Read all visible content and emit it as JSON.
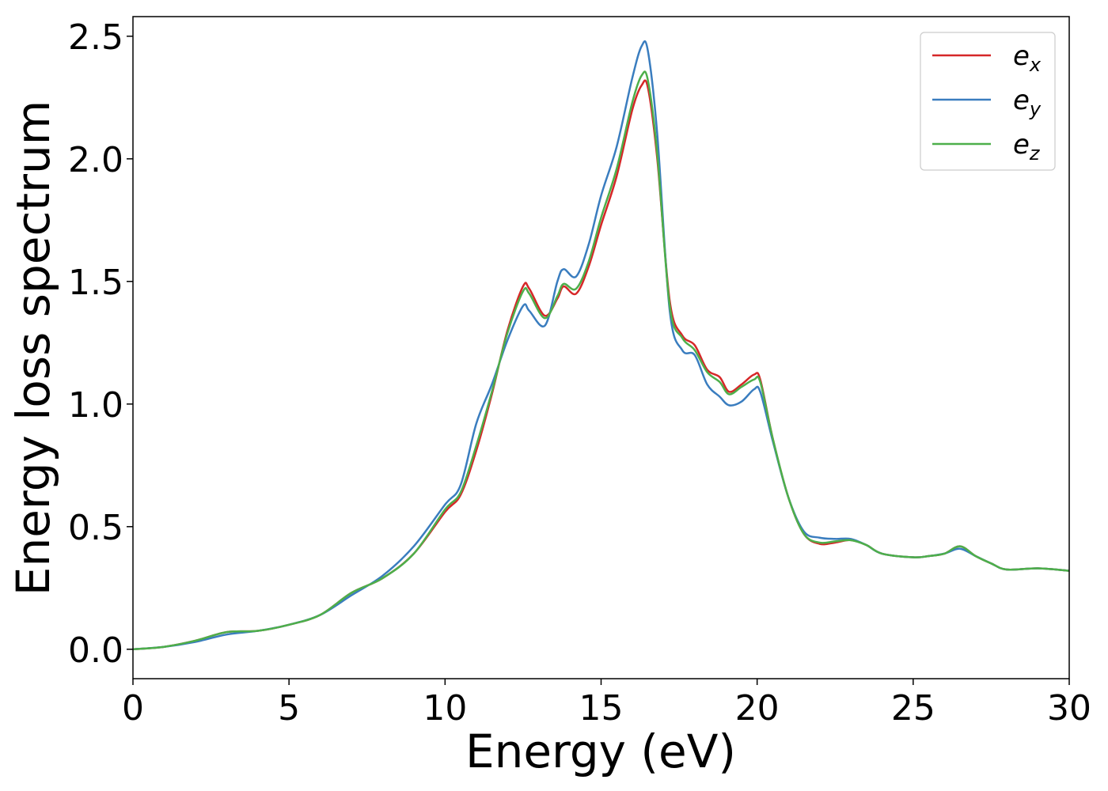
{
  "chart_data": {
    "type": "line",
    "title": "",
    "xlabel": "Energy (eV)",
    "ylabel": "Energy loss spectrum",
    "xlim": [
      0,
      30
    ],
    "ylim": [
      -0.12,
      2.58
    ],
    "xticks": [
      0,
      5,
      10,
      15,
      20,
      25,
      30
    ],
    "xtick_labels": [
      "0",
      "5",
      "10",
      "15",
      "20",
      "25",
      "30"
    ],
    "yticks": [
      0.0,
      0.5,
      1.0,
      1.5,
      2.0,
      2.5
    ],
    "ytick_labels": [
      "0.0",
      "0.5",
      "1.0",
      "1.5",
      "2.0",
      "2.5"
    ],
    "grid": false,
    "legend_position": "top-right",
    "series": [
      {
        "name": "e_x",
        "legend_main": "e",
        "legend_sub": "x",
        "color": "#d62728",
        "x": [
          0,
          1,
          2,
          3,
          4,
          5,
          6,
          7,
          8,
          9,
          10,
          10.5,
          11,
          11.5,
          12,
          12.5,
          12.7,
          13.2,
          13.6,
          13.8,
          14.2,
          14.6,
          15,
          15.5,
          16,
          16.3,
          16.5,
          16.8,
          17.2,
          17.6,
          18,
          18.4,
          18.8,
          19.1,
          19.5,
          19.9,
          20.1,
          20.5,
          21,
          21.5,
          22,
          22.5,
          23,
          23.5,
          24,
          25,
          25.5,
          26,
          26.5,
          27,
          27.5,
          28,
          29,
          30
        ],
        "y": [
          0.0,
          0.01,
          0.035,
          0.07,
          0.075,
          0.1,
          0.14,
          0.23,
          0.29,
          0.39,
          0.56,
          0.63,
          0.81,
          1.04,
          1.3,
          1.48,
          1.47,
          1.36,
          1.43,
          1.48,
          1.45,
          1.56,
          1.73,
          1.93,
          2.2,
          2.3,
          2.29,
          2.0,
          1.42,
          1.28,
          1.24,
          1.14,
          1.11,
          1.05,
          1.08,
          1.12,
          1.1,
          0.86,
          0.62,
          0.47,
          0.43,
          0.435,
          0.445,
          0.425,
          0.39,
          0.375,
          0.38,
          0.39,
          0.42,
          0.38,
          0.35,
          0.325,
          0.33,
          0.32
        ]
      },
      {
        "name": "e_y",
        "legend_main": "e",
        "legend_sub": "y",
        "color": "#3a7dbf",
        "x": [
          0,
          1,
          2,
          3,
          4,
          5,
          6,
          7,
          8,
          9,
          10,
          10.5,
          11,
          11.5,
          12,
          12.5,
          12.7,
          13.2,
          13.6,
          13.8,
          14.2,
          14.6,
          15,
          15.5,
          16,
          16.3,
          16.5,
          16.8,
          17.2,
          17.6,
          18,
          18.4,
          18.8,
          19.1,
          19.5,
          19.9,
          20.1,
          20.5,
          21,
          21.5,
          22,
          22.5,
          23,
          23.5,
          24,
          25,
          25.5,
          26,
          26.5,
          27,
          27.5,
          28,
          29,
          30
        ],
        "y": [
          0.0,
          0.01,
          0.03,
          0.06,
          0.075,
          0.1,
          0.14,
          0.22,
          0.3,
          0.42,
          0.59,
          0.67,
          0.92,
          1.08,
          1.26,
          1.4,
          1.38,
          1.32,
          1.5,
          1.55,
          1.52,
          1.65,
          1.85,
          2.05,
          2.33,
          2.46,
          2.44,
          2.1,
          1.38,
          1.22,
          1.2,
          1.08,
          1.03,
          0.995,
          1.01,
          1.06,
          1.05,
          0.85,
          0.62,
          0.48,
          0.455,
          0.45,
          0.45,
          0.425,
          0.39,
          0.375,
          0.38,
          0.39,
          0.41,
          0.38,
          0.35,
          0.325,
          0.33,
          0.32
        ]
      },
      {
        "name": "e_z",
        "legend_main": "e",
        "legend_sub": "z",
        "color": "#4daf4a",
        "x": [
          0,
          1,
          2,
          3,
          4,
          5,
          6,
          7,
          8,
          9,
          10,
          10.5,
          11,
          11.5,
          12,
          12.5,
          12.7,
          13.2,
          13.6,
          13.8,
          14.2,
          14.6,
          15,
          15.5,
          16,
          16.3,
          16.5,
          16.8,
          17.2,
          17.6,
          18,
          18.4,
          18.8,
          19.1,
          19.5,
          19.9,
          20.1,
          20.5,
          21,
          21.5,
          22,
          22.5,
          23,
          23.5,
          24,
          25,
          25.5,
          26,
          26.5,
          27,
          27.5,
          28,
          29,
          30
        ],
        "y": [
          0.0,
          0.01,
          0.035,
          0.07,
          0.075,
          0.1,
          0.14,
          0.23,
          0.29,
          0.39,
          0.57,
          0.64,
          0.83,
          1.05,
          1.29,
          1.46,
          1.45,
          1.35,
          1.44,
          1.49,
          1.47,
          1.58,
          1.76,
          1.96,
          2.23,
          2.34,
          2.32,
          2.02,
          1.4,
          1.27,
          1.22,
          1.13,
          1.09,
          1.04,
          1.07,
          1.1,
          1.09,
          0.86,
          0.62,
          0.47,
          0.435,
          0.44,
          0.445,
          0.425,
          0.39,
          0.375,
          0.38,
          0.39,
          0.42,
          0.38,
          0.35,
          0.325,
          0.33,
          0.32
        ]
      }
    ]
  }
}
